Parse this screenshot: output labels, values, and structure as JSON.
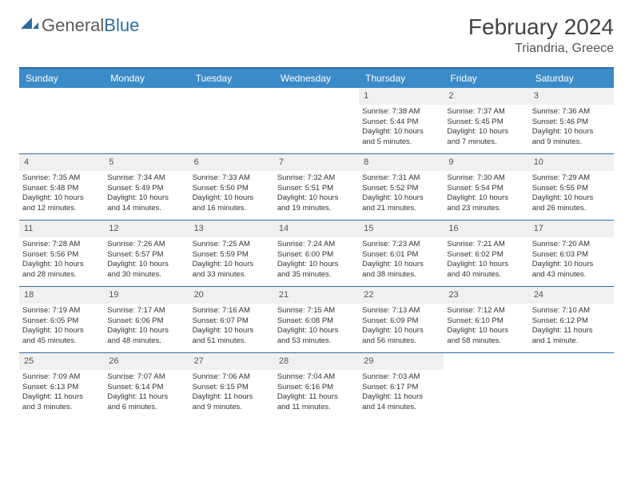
{
  "logo": {
    "text_gray": "General",
    "text_blue": "Blue"
  },
  "title": "February 2024",
  "location": "Triandria, Greece",
  "colors": {
    "header_bg": "#3b8bc9",
    "border": "#2d6ca2",
    "daynum_bg": "#f0f0f0",
    "text": "#333333"
  },
  "dow": [
    "Sunday",
    "Monday",
    "Tuesday",
    "Wednesday",
    "Thursday",
    "Friday",
    "Saturday"
  ],
  "weeks": [
    [
      null,
      null,
      null,
      null,
      {
        "n": "1",
        "sr": "Sunrise: 7:38 AM",
        "ss": "Sunset: 5:44 PM",
        "d1": "Daylight: 10 hours",
        "d2": "and 5 minutes."
      },
      {
        "n": "2",
        "sr": "Sunrise: 7:37 AM",
        "ss": "Sunset: 5:45 PM",
        "d1": "Daylight: 10 hours",
        "d2": "and 7 minutes."
      },
      {
        "n": "3",
        "sr": "Sunrise: 7:36 AM",
        "ss": "Sunset: 5:46 PM",
        "d1": "Daylight: 10 hours",
        "d2": "and 9 minutes."
      }
    ],
    [
      {
        "n": "4",
        "sr": "Sunrise: 7:35 AM",
        "ss": "Sunset: 5:48 PM",
        "d1": "Daylight: 10 hours",
        "d2": "and 12 minutes."
      },
      {
        "n": "5",
        "sr": "Sunrise: 7:34 AM",
        "ss": "Sunset: 5:49 PM",
        "d1": "Daylight: 10 hours",
        "d2": "and 14 minutes."
      },
      {
        "n": "6",
        "sr": "Sunrise: 7:33 AM",
        "ss": "Sunset: 5:50 PM",
        "d1": "Daylight: 10 hours",
        "d2": "and 16 minutes."
      },
      {
        "n": "7",
        "sr": "Sunrise: 7:32 AM",
        "ss": "Sunset: 5:51 PM",
        "d1": "Daylight: 10 hours",
        "d2": "and 19 minutes."
      },
      {
        "n": "8",
        "sr": "Sunrise: 7:31 AM",
        "ss": "Sunset: 5:52 PM",
        "d1": "Daylight: 10 hours",
        "d2": "and 21 minutes."
      },
      {
        "n": "9",
        "sr": "Sunrise: 7:30 AM",
        "ss": "Sunset: 5:54 PM",
        "d1": "Daylight: 10 hours",
        "d2": "and 23 minutes."
      },
      {
        "n": "10",
        "sr": "Sunrise: 7:29 AM",
        "ss": "Sunset: 5:55 PM",
        "d1": "Daylight: 10 hours",
        "d2": "and 26 minutes."
      }
    ],
    [
      {
        "n": "11",
        "sr": "Sunrise: 7:28 AM",
        "ss": "Sunset: 5:56 PM",
        "d1": "Daylight: 10 hours",
        "d2": "and 28 minutes."
      },
      {
        "n": "12",
        "sr": "Sunrise: 7:26 AM",
        "ss": "Sunset: 5:57 PM",
        "d1": "Daylight: 10 hours",
        "d2": "and 30 minutes."
      },
      {
        "n": "13",
        "sr": "Sunrise: 7:25 AM",
        "ss": "Sunset: 5:59 PM",
        "d1": "Daylight: 10 hours",
        "d2": "and 33 minutes."
      },
      {
        "n": "14",
        "sr": "Sunrise: 7:24 AM",
        "ss": "Sunset: 6:00 PM",
        "d1": "Daylight: 10 hours",
        "d2": "and 35 minutes."
      },
      {
        "n": "15",
        "sr": "Sunrise: 7:23 AM",
        "ss": "Sunset: 6:01 PM",
        "d1": "Daylight: 10 hours",
        "d2": "and 38 minutes."
      },
      {
        "n": "16",
        "sr": "Sunrise: 7:21 AM",
        "ss": "Sunset: 6:02 PM",
        "d1": "Daylight: 10 hours",
        "d2": "and 40 minutes."
      },
      {
        "n": "17",
        "sr": "Sunrise: 7:20 AM",
        "ss": "Sunset: 6:03 PM",
        "d1": "Daylight: 10 hours",
        "d2": "and 43 minutes."
      }
    ],
    [
      {
        "n": "18",
        "sr": "Sunrise: 7:19 AM",
        "ss": "Sunset: 6:05 PM",
        "d1": "Daylight: 10 hours",
        "d2": "and 45 minutes."
      },
      {
        "n": "19",
        "sr": "Sunrise: 7:17 AM",
        "ss": "Sunset: 6:06 PM",
        "d1": "Daylight: 10 hours",
        "d2": "and 48 minutes."
      },
      {
        "n": "20",
        "sr": "Sunrise: 7:16 AM",
        "ss": "Sunset: 6:07 PM",
        "d1": "Daylight: 10 hours",
        "d2": "and 51 minutes."
      },
      {
        "n": "21",
        "sr": "Sunrise: 7:15 AM",
        "ss": "Sunset: 6:08 PM",
        "d1": "Daylight: 10 hours",
        "d2": "and 53 minutes."
      },
      {
        "n": "22",
        "sr": "Sunrise: 7:13 AM",
        "ss": "Sunset: 6:09 PM",
        "d1": "Daylight: 10 hours",
        "d2": "and 56 minutes."
      },
      {
        "n": "23",
        "sr": "Sunrise: 7:12 AM",
        "ss": "Sunset: 6:10 PM",
        "d1": "Daylight: 10 hours",
        "d2": "and 58 minutes."
      },
      {
        "n": "24",
        "sr": "Sunrise: 7:10 AM",
        "ss": "Sunset: 6:12 PM",
        "d1": "Daylight: 11 hours",
        "d2": "and 1 minute."
      }
    ],
    [
      {
        "n": "25",
        "sr": "Sunrise: 7:09 AM",
        "ss": "Sunset: 6:13 PM",
        "d1": "Daylight: 11 hours",
        "d2": "and 3 minutes."
      },
      {
        "n": "26",
        "sr": "Sunrise: 7:07 AM",
        "ss": "Sunset: 6:14 PM",
        "d1": "Daylight: 11 hours",
        "d2": "and 6 minutes."
      },
      {
        "n": "27",
        "sr": "Sunrise: 7:06 AM",
        "ss": "Sunset: 6:15 PM",
        "d1": "Daylight: 11 hours",
        "d2": "and 9 minutes."
      },
      {
        "n": "28",
        "sr": "Sunrise: 7:04 AM",
        "ss": "Sunset: 6:16 PM",
        "d1": "Daylight: 11 hours",
        "d2": "and 11 minutes."
      },
      {
        "n": "29",
        "sr": "Sunrise: 7:03 AM",
        "ss": "Sunset: 6:17 PM",
        "d1": "Daylight: 11 hours",
        "d2": "and 14 minutes."
      },
      null,
      null
    ]
  ]
}
